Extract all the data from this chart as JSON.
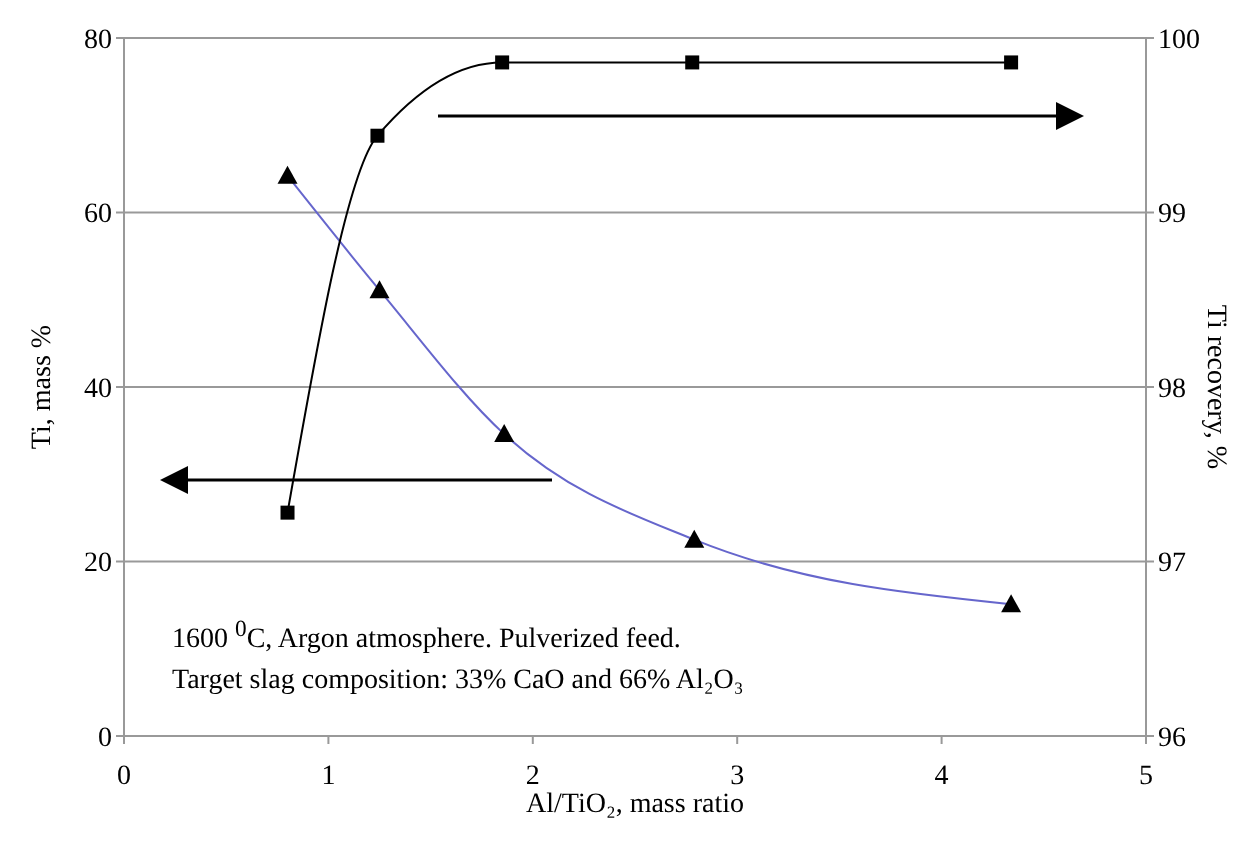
{
  "chart_data": {
    "type": "line",
    "xlabel": "Al/TiO₂, mass ratio",
    "ylabel": "Ti, mass %",
    "y2label": "Ti recovery, %",
    "xlim": [
      0,
      5
    ],
    "xticks": [
      0,
      1,
      2,
      3,
      4,
      5
    ],
    "ylim": [
      0,
      80
    ],
    "yticks": [
      0,
      20,
      40,
      60,
      80
    ],
    "y2lim": [
      96,
      100
    ],
    "y2ticks": [
      96,
      97,
      98,
      99,
      100
    ],
    "grid": "y",
    "legend": false,
    "series": [
      {
        "color": "#6666cc",
        "marker": "triangle",
        "x": [
          0.8,
          1.25,
          1.86,
          2.79,
          4.34
        ],
        "values": [
          64.2,
          51.1,
          34.6,
          22.5,
          15.1
        ]
      },
      {
        "color": "#000000",
        "marker": "square",
        "axis": "y2",
        "x": [
          0.8,
          1.24,
          1.85,
          2.78,
          4.34
        ],
        "values": [
          97.28,
          99.44,
          99.86,
          99.86,
          99.86
        ]
      }
    ],
    "annotations": [
      "1600 $^{0}$C, Argon atmosphere. Pulverized feed.",
      "Target slag composition: 33% CaO and 66% Al₂O₃"
    ]
  }
}
